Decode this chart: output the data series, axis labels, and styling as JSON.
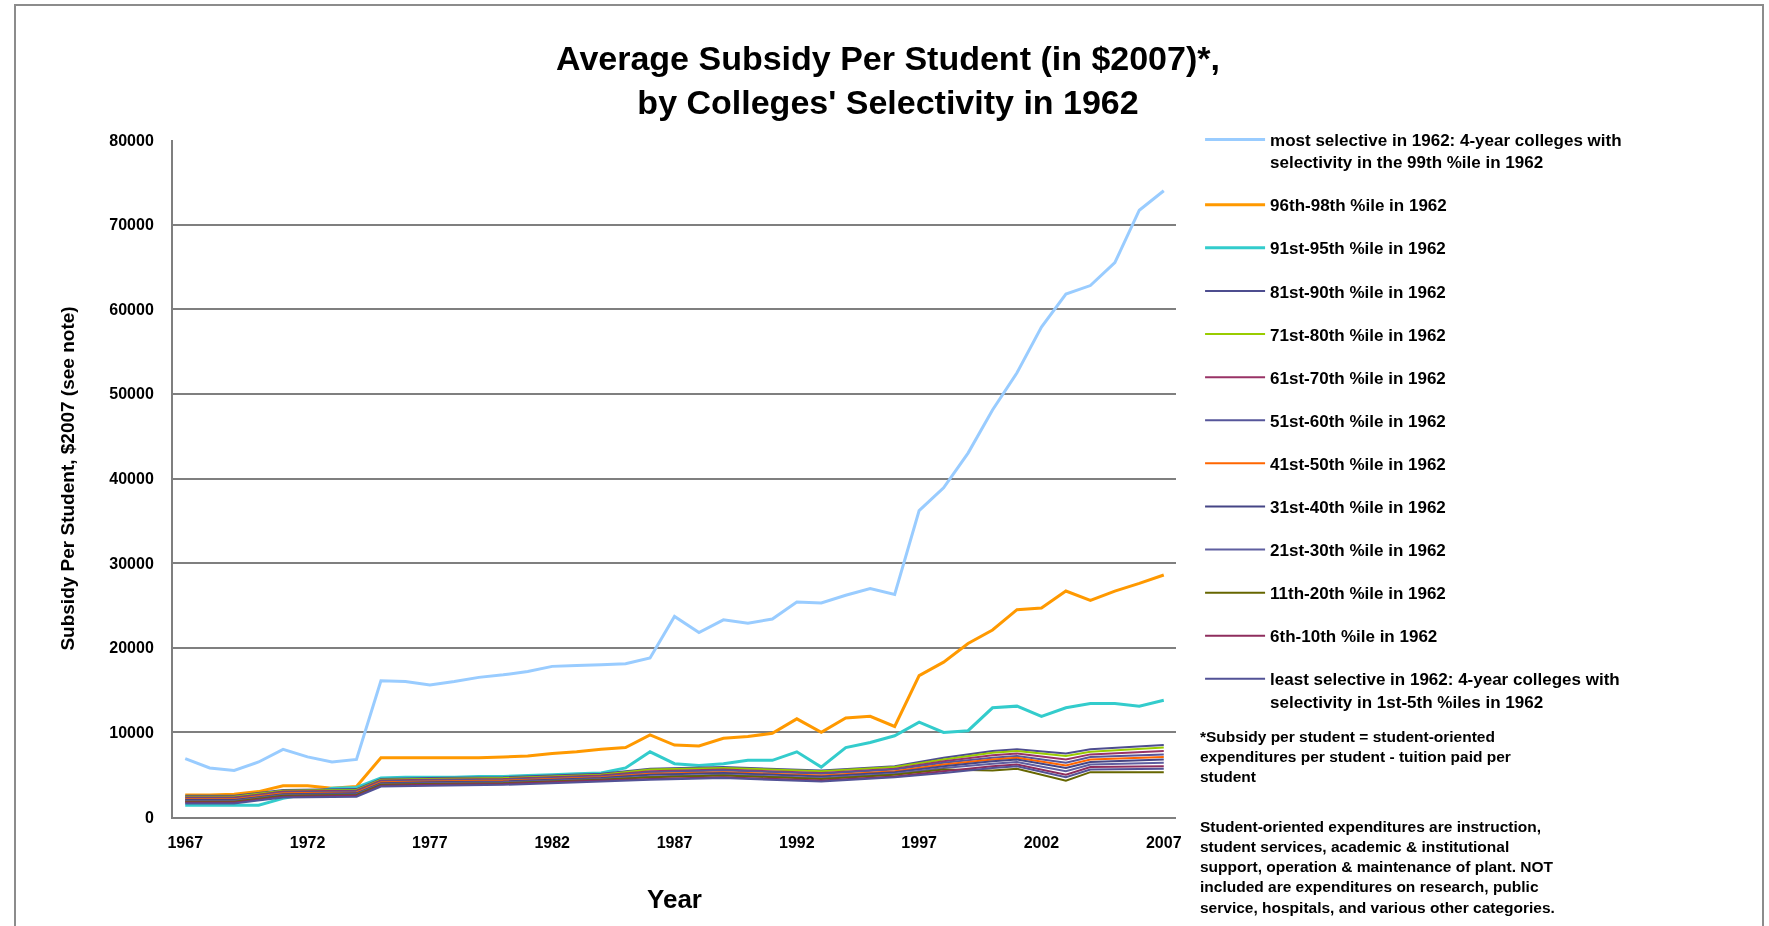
{
  "chart_data": {
    "type": "line",
    "title": "Average Subsidy Per Student (in $2007)*, by Colleges' Selectivity in 1962",
    "xlabel": "Year",
    "ylabel": "Subsidy Per Student, $2007 (see note)",
    "x": [
      1967,
      1968,
      1969,
      1970,
      1971,
      1972,
      1973,
      1974,
      1975,
      1976,
      1977,
      1978,
      1979,
      1980,
      1981,
      1982,
      1983,
      1984,
      1985,
      1986,
      1987,
      1988,
      1989,
      1990,
      1991,
      1992,
      1993,
      1994,
      1995,
      1996,
      1997,
      1998,
      1999,
      2000,
      2001,
      2002,
      2003,
      2004,
      2005,
      2006,
      2007
    ],
    "xlim": [
      1966.5,
      2007.5
    ],
    "xticks": [
      1967,
      1972,
      1977,
      1982,
      1987,
      1992,
      1997,
      2002,
      2007
    ],
    "ylim": [
      0,
      80000
    ],
    "yticks": [
      0,
      10000,
      20000,
      30000,
      40000,
      50000,
      60000,
      70000,
      80000
    ],
    "grid": "y",
    "legend": "right",
    "series": [
      {
        "name": "most selective in 1962: 4-year colleges with selectivity in the 99th %ile in 1962",
        "color": "#99ccff",
        "values": [
          6900,
          5800,
          5500,
          6500,
          8000,
          7100,
          6500,
          6800,
          16100,
          16000,
          15600,
          16000,
          16500,
          16800,
          17200,
          17800,
          17900,
          18000,
          18100,
          18800,
          23700,
          21800,
          23300,
          22900,
          23400,
          25400,
          25300,
          26200,
          27000,
          26300,
          36200,
          38900,
          43000,
          48100,
          52500,
          57900,
          61800,
          62800,
          65500,
          71700,
          74000
        ]
      },
      {
        "name": "96th-98th %ile in 1962",
        "color": "#ff9900",
        "values": [
          2600,
          2600,
          2700,
          3000,
          3700,
          3700,
          3400,
          3600,
          7000,
          7000,
          7000,
          7000,
          7000,
          7100,
          7200,
          7500,
          7700,
          8000,
          8200,
          9700,
          8500,
          8400,
          9300,
          9500,
          9900,
          11600,
          10000,
          11700,
          11900,
          10700,
          16700,
          18300,
          20500,
          22100,
          24500,
          24700,
          26700,
          25600,
          26700,
          27600,
          28600
        ]
      },
      {
        "name": "91st-95th %ile in 1962",
        "color": "#33cccc",
        "values": [
          1400,
          1400,
          1400,
          1400,
          2200,
          2700,
          3400,
          3500,
          4600,
          4700,
          4700,
          4700,
          4800,
          4800,
          4900,
          5000,
          5100,
          5200,
          5800,
          7700,
          6300,
          6100,
          6300,
          6700,
          6700,
          7700,
          5900,
          8200,
          8800,
          9600,
          11200,
          10000,
          10200,
          12900,
          13100,
          11900,
          12900,
          13400,
          13400,
          13100,
          13800
        ]
      },
      {
        "name": "81st-90th %ile in 1962",
        "color": "#4d4d8f",
        "x": [
          1967,
          1969,
          1971,
          1974,
          1975,
          1977,
          1980,
          1984,
          1986,
          1989,
          1993,
          1996,
          1998,
          2000,
          2001,
          2003,
          2004,
          2007
        ],
        "values": [
          2500,
          2500,
          3200,
          3300,
          4500,
          4600,
          4700,
          5100,
          5700,
          5900,
          5500,
          6000,
          7000,
          7800,
          8000,
          7500,
          8000,
          8500
        ]
      },
      {
        "name": "71st-80th %ile in 1962",
        "color": "#99cc00",
        "x": [
          1967,
          1969,
          1971,
          1974,
          1975,
          1977,
          1980,
          1984,
          1986,
          1989,
          1993,
          1996,
          1998,
          2000,
          2001,
          2003,
          2004,
          2007
        ],
        "values": [
          2400,
          2400,
          3100,
          3200,
          4400,
          4500,
          4600,
          5000,
          5600,
          5800,
          5400,
          5900,
          6800,
          7600,
          7800,
          7200,
          7700,
          8200
        ]
      },
      {
        "name": "61st-70th %ile in 1962",
        "color": "#993366",
        "x": [
          1967,
          1969,
          1971,
          1974,
          1975,
          1977,
          1980,
          1984,
          1986,
          1989,
          1993,
          1996,
          1998,
          2000,
          2001,
          2003,
          2004,
          2007
        ],
        "values": [
          2300,
          2300,
          3000,
          3100,
          4300,
          4400,
          4500,
          4900,
          5400,
          5600,
          5200,
          5700,
          6600,
          7300,
          7500,
          6800,
          7400,
          7800
        ]
      },
      {
        "name": "51st-60th %ile in 1962",
        "color": "#56569a",
        "x": [
          1967,
          1969,
          1971,
          1974,
          1975,
          1977,
          1980,
          1984,
          1986,
          1989,
          1993,
          1996,
          1998,
          2000,
          2001,
          2003,
          2004,
          2007
        ],
        "values": [
          2200,
          2200,
          2900,
          3000,
          4200,
          4300,
          4400,
          4800,
          5300,
          5500,
          5100,
          5600,
          6400,
          7000,
          7200,
          6400,
          7100,
          7400
        ]
      },
      {
        "name": "41st-50th %ile in 1962",
        "color": "#ff6600",
        "x": [
          1967,
          1969,
          1971,
          1974,
          1975,
          1977,
          1980,
          1984,
          1986,
          1989,
          1993,
          1996,
          1998,
          2000,
          2001,
          2003,
          2004,
          2007
        ],
        "values": [
          2100,
          2100,
          2800,
          2900,
          4100,
          4200,
          4300,
          4700,
          5100,
          5300,
          4900,
          5400,
          6200,
          6800,
          7000,
          6100,
          6800,
          7100
        ]
      },
      {
        "name": "31st-40th %ile in 1962",
        "color": "#454585",
        "x": [
          1967,
          1969,
          1971,
          1974,
          1975,
          1977,
          1980,
          1984,
          1986,
          1989,
          1993,
          1996,
          1998,
          2000,
          2001,
          2003,
          2004,
          2007
        ],
        "values": [
          2000,
          2000,
          2700,
          2800,
          4000,
          4100,
          4200,
          4600,
          5000,
          5200,
          4800,
          5300,
          6000,
          6600,
          6800,
          5800,
          6500,
          6800
        ]
      },
      {
        "name": "21st-30th %ile in 1962",
        "color": "#5f5fa0",
        "x": [
          1967,
          1969,
          1971,
          1974,
          1975,
          1977,
          1980,
          1984,
          1986,
          1989,
          1993,
          1996,
          1998,
          2000,
          2001,
          2003,
          2004,
          2007
        ],
        "values": [
          1900,
          1900,
          2600,
          2700,
          3900,
          4000,
          4100,
          4500,
          4800,
          5000,
          4600,
          5100,
          5800,
          6300,
          6500,
          5400,
          6200,
          6400
        ]
      },
      {
        "name": "11th-20th %ile in 1962",
        "color": "#666600",
        "x": [
          1967,
          1969,
          1971,
          1974,
          1975,
          1977,
          1980,
          1984,
          1986,
          1989,
          1993,
          1996,
          1998,
          2000,
          2001,
          2003,
          2004,
          2007
        ],
        "values": [
          1800,
          1800,
          2500,
          2600,
          3800,
          3900,
          4000,
          4400,
          4700,
          4900,
          4500,
          5000,
          5600,
          5500,
          5700,
          4300,
          5300,
          5300
        ]
      },
      {
        "name": "6th-10th %ile in 1962",
        "color": "#8e2d5d",
        "x": [
          1967,
          1969,
          1971,
          1974,
          1975,
          1977,
          1980,
          1984,
          1986,
          1989,
          1993,
          1996,
          1998,
          2000,
          2001,
          2003,
          2004,
          2007
        ],
        "values": [
          1700,
          1700,
          2400,
          2500,
          3700,
          3800,
          3900,
          4300,
          4500,
          4700,
          4300,
          4800,
          5400,
          6000,
          6200,
          5000,
          5900,
          6000
        ]
      },
      {
        "name": "least selective in 1962: 4-year colleges with selectivity in 1st-5th %iles in 1962",
        "color": "#525296",
        "x": [
          1967,
          1969,
          1971,
          1974,
          1975,
          1977,
          1980,
          1984,
          1986,
          1989,
          1993,
          1996,
          1998,
          2000,
          2001,
          2003,
          2004,
          2007
        ],
        "values": [
          1600,
          1600,
          2300,
          2400,
          3600,
          3700,
          3800,
          4200,
          4400,
          4600,
          4200,
          4700,
          5200,
          5800,
          6000,
          4700,
          5600,
          5700
        ]
      }
    ],
    "annotations": [
      "*Subsidy per student = student-oriented expenditures per student - tuition paid per student",
      "Student-oriented expenditures are instruction, student services, academic & institutional support, operation & maintenance of plant. NOT included are expenditures on research, public service, hospitals, and various other categories."
    ]
  }
}
